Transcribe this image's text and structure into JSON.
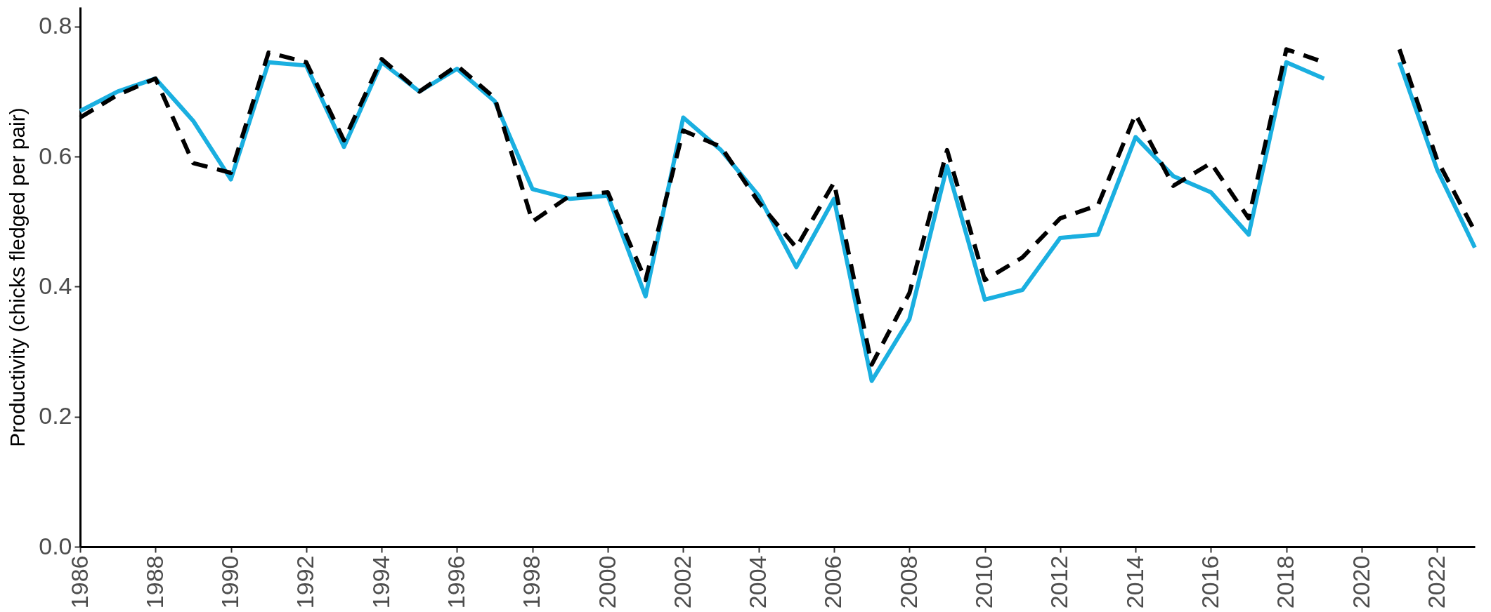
{
  "chart_data": {
    "type": "line",
    "ylabel": "Productivity (chicks fledged per pair)",
    "x": [
      1986,
      1987,
      1988,
      1989,
      1990,
      1991,
      1992,
      1993,
      1994,
      1995,
      1996,
      1997,
      1998,
      1999,
      2000,
      2001,
      2002,
      2003,
      2004,
      2005,
      2006,
      2007,
      2008,
      2009,
      2010,
      2011,
      2012,
      2013,
      2014,
      2015,
      2016,
      2017,
      2018,
      2019,
      2020,
      2021,
      2022,
      2023
    ],
    "series": [
      {
        "color": "#1aafe0",
        "line_style": "solid",
        "values": [
          0.67,
          0.7,
          0.72,
          0.655,
          0.565,
          0.745,
          0.74,
          0.615,
          0.745,
          0.7,
          0.735,
          0.685,
          0.55,
          0.535,
          0.54,
          0.385,
          0.66,
          0.61,
          0.54,
          0.43,
          0.535,
          0.255,
          0.35,
          0.585,
          0.38,
          0.395,
          0.475,
          0.48,
          0.63,
          0.57,
          0.545,
          0.48,
          0.745,
          0.72,
          null,
          0.745,
          0.58,
          0.46
        ]
      },
      {
        "color": "#000000",
        "line_style": "dashed",
        "values": [
          0.66,
          0.695,
          0.72,
          0.59,
          0.575,
          0.76,
          0.745,
          0.625,
          0.75,
          0.7,
          0.74,
          0.69,
          0.5,
          0.54,
          0.545,
          0.41,
          0.64,
          0.615,
          0.53,
          0.46,
          0.56,
          0.28,
          0.39,
          0.61,
          0.41,
          0.445,
          0.505,
          0.525,
          0.665,
          0.555,
          0.59,
          0.505,
          0.765,
          0.745,
          null,
          0.765,
          0.595,
          0.485
        ]
      }
    ],
    "xlim": [
      1986,
      2023
    ],
    "xticks": [
      1986,
      1988,
      1990,
      1992,
      1994,
      1996,
      1998,
      2000,
      2002,
      2004,
      2006,
      2008,
      2010,
      2012,
      2014,
      2016,
      2018,
      2020,
      2022
    ],
    "ylim": [
      0,
      0.83
    ],
    "yticks": [
      {
        "value": 0,
        "label": "0.0"
      },
      {
        "value": 0.2,
        "label": "0.2"
      },
      {
        "value": 0.4,
        "label": "0.4"
      },
      {
        "value": 0.6,
        "label": "0.6"
      },
      {
        "value": 0.8,
        "label": "0.8"
      }
    ],
    "grid": false,
    "legend": false,
    "marker": "none"
  }
}
